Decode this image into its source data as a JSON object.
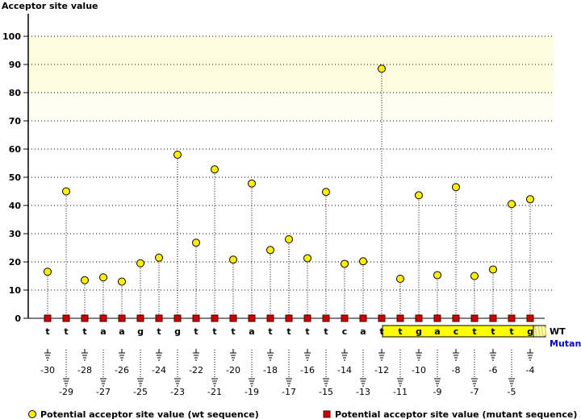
{
  "chart_data": {
    "type": "scatter",
    "title": "",
    "ylabel": "Acceptor site value",
    "ylim": [
      0,
      100
    ],
    "yticks": [
      0,
      10,
      20,
      30,
      40,
      50,
      60,
      70,
      80,
      90,
      100
    ],
    "grid": true,
    "highlight_bands": [
      {
        "from": 80,
        "to": 100,
        "color": "#fffde0"
      },
      {
        "from": 70,
        "to": 80,
        "color": "#fffef2"
      }
    ],
    "positions": [
      -30,
      -29,
      -28,
      -27,
      -26,
      -25,
      -24,
      -23,
      -22,
      -21,
      -20,
      -19,
      -18,
      -17,
      -16,
      -15,
      -14,
      -13,
      -12,
      -11,
      -10,
      -9,
      -8,
      -7,
      -6,
      -5,
      -4
    ],
    "sequence_wt": [
      "t",
      "t",
      "t",
      "a",
      "a",
      "g",
      "t",
      "g",
      "t",
      "t",
      "t",
      "a",
      "t",
      "t",
      "t",
      "t",
      "c",
      "a",
      "t",
      "t",
      "g",
      "a",
      "c",
      "t",
      "t",
      "t",
      "g"
    ],
    "highlighted_from_position": -11,
    "series": [
      {
        "name": "Potential acceptor site value (wt sequence)",
        "color": "#ffee00",
        "values": [
          16.5,
          45,
          13.5,
          14.5,
          13,
          19.5,
          21.5,
          58,
          26.8,
          52.8,
          20.8,
          47.8,
          24.2,
          28,
          21.3,
          44.8,
          19.3,
          20.2,
          88.5,
          14,
          43.6,
          15.3,
          46.5,
          15,
          17.3,
          40.5,
          42.2
        ]
      },
      {
        "name": "Potential acceptor site value (mutant sequence)",
        "color": "#cc0000",
        "values": [
          0,
          0,
          0,
          0,
          0,
          0,
          0,
          0,
          0,
          0,
          0,
          0,
          0,
          0,
          0,
          0,
          0,
          0,
          0,
          0,
          0,
          0,
          0,
          0,
          0,
          0,
          0
        ]
      }
    ],
    "row_labels": {
      "wt": "WT",
      "mutant": "Mutant"
    },
    "legend_placement": "bottom"
  }
}
